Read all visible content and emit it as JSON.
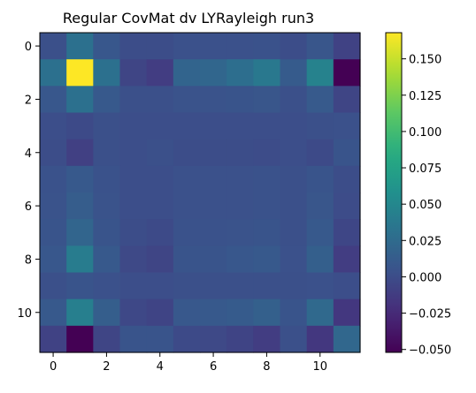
{
  "chart_data": {
    "type": "heatmap",
    "title": "Regular CovMat dv LYRayleigh run3",
    "xlabel": "",
    "ylabel": "",
    "rows": 12,
    "cols": 12,
    "x_ticks": [
      "0",
      "2",
      "4",
      "6",
      "8",
      "10"
    ],
    "y_ticks": [
      "0",
      "2",
      "4",
      "6",
      "8",
      "10"
    ],
    "x_tick_values": [
      0,
      2,
      4,
      6,
      8,
      10
    ],
    "y_tick_values": [
      0,
      2,
      4,
      6,
      8,
      10
    ],
    "colorbar": {
      "min": -0.052,
      "max": 0.168,
      "ticks": [
        "0.150",
        "0.125",
        "0.100",
        "0.075",
        "0.050",
        "0.025",
        "0.000",
        "−0.025",
        "−0.050"
      ],
      "tick_values": [
        0.15,
        0.125,
        0.1,
        0.075,
        0.05,
        0.025,
        0.0,
        -0.025,
        -0.05
      ]
    },
    "colormap": "viridis",
    "values": [
      [
        0.002,
        0.03,
        0.008,
        0.0,
        0.0,
        0.003,
        0.003,
        0.003,
        0.004,
        0.0,
        0.007,
        -0.008
      ],
      [
        0.03,
        0.168,
        0.03,
        -0.006,
        -0.012,
        0.019,
        0.021,
        0.028,
        0.037,
        0.012,
        0.046,
        -0.052
      ],
      [
        0.008,
        0.03,
        0.01,
        0.002,
        0.002,
        0.005,
        0.005,
        0.006,
        0.007,
        0.002,
        0.011,
        -0.006
      ],
      [
        0.001,
        -0.002,
        0.002,
        0.001,
        0.001,
        0.001,
        0.001,
        0.001,
        0.001,
        0.001,
        0.002,
        0.003
      ],
      [
        0.0,
        -0.01,
        0.002,
        0.001,
        0.002,
        0.0,
        0.0,
        0.0,
        -0.001,
        0.001,
        -0.002,
        0.006
      ],
      [
        0.004,
        0.01,
        0.004,
        0.001,
        0.001,
        0.003,
        0.003,
        0.003,
        0.004,
        0.002,
        0.006,
        0.0
      ],
      [
        0.005,
        0.013,
        0.005,
        0.001,
        0.001,
        0.003,
        0.003,
        0.003,
        0.004,
        0.002,
        0.007,
        -0.001
      ],
      [
        0.006,
        0.02,
        0.006,
        0.0,
        -0.002,
        0.004,
        0.004,
        0.005,
        0.006,
        0.002,
        0.01,
        -0.005
      ],
      [
        0.008,
        0.04,
        0.01,
        -0.003,
        -0.006,
        0.006,
        0.006,
        0.008,
        0.01,
        0.003,
        0.015,
        -0.012
      ],
      [
        0.002,
        0.006,
        0.003,
        0.001,
        0.001,
        0.002,
        0.002,
        0.002,
        0.002,
        0.002,
        0.003,
        0.001
      ],
      [
        0.01,
        0.043,
        0.014,
        -0.004,
        -0.007,
        0.009,
        0.01,
        0.012,
        0.016,
        0.006,
        0.024,
        -0.016
      ],
      [
        -0.008,
        -0.052,
        -0.006,
        0.006,
        0.006,
        -0.002,
        -0.003,
        -0.007,
        -0.012,
        0.002,
        -0.016,
        0.022
      ]
    ]
  }
}
